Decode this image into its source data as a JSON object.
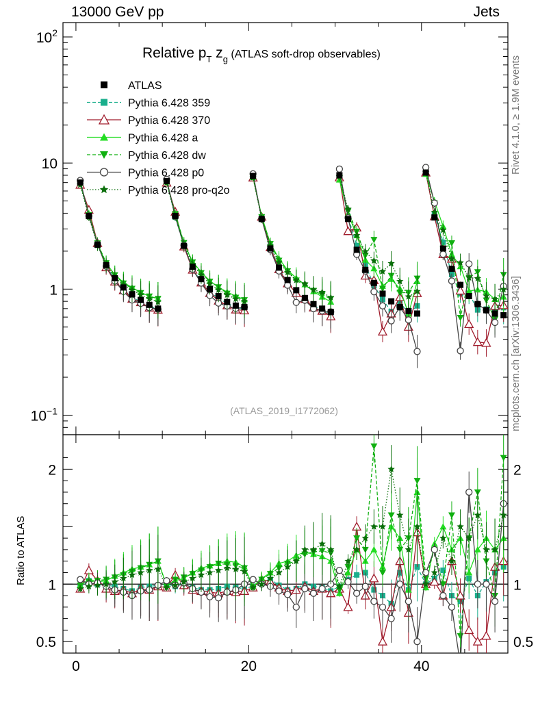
{
  "header": {
    "left": "13000 GeV pp",
    "right": "Jets"
  },
  "side": {
    "top": "Rivet 4.1.0, ≥ 1.9M events",
    "bottom": "mcplots.cern.ch [arXiv:1306.3436]"
  },
  "chart_data": {
    "type": "line",
    "title_parts": {
      "pre": "Relative p",
      "sub_T": "T",
      "mid": " z",
      "sub_g": "g",
      "post": " (ATLAS soft-drop observables)"
    },
    "analysis": "(ATLAS_2019_I1772062)",
    "xlabel": "",
    "ylabel_ratio": "Ratio to ATLAS",
    "xlim": [
      -1.5,
      50.0
    ],
    "ylim_main": [
      0.07,
      130
    ],
    "ylim_ratio": [
      0.4,
      2.3
    ],
    "yscale_main": "log",
    "x_ticks": [
      0,
      20,
      40
    ],
    "main_ticks": [
      {
        "v": 100,
        "m": "10",
        "e": "2"
      },
      {
        "v": 10,
        "m": "10",
        "e": ""
      },
      {
        "v": 1,
        "m": "1",
        "e": ""
      },
      {
        "v": 0.1,
        "m": "10",
        "e": "−1"
      }
    ],
    "ratio_ticks": [
      {
        "v": 2,
        "label": "2"
      },
      {
        "v": 1,
        "label": "1"
      },
      {
        "v": 0.5,
        "label": "0.5"
      }
    ],
    "data": {
      "name": "ATLAS",
      "x": [
        0.5,
        1.5,
        2.5,
        3.5,
        4.5,
        5.5,
        6.5,
        7.5,
        8.5,
        9.5,
        10.5,
        11.5,
        12.5,
        13.5,
        14.5,
        15.5,
        16.5,
        17.5,
        18.5,
        19.5,
        20.5,
        21.5,
        22.5,
        23.5,
        24.5,
        25.5,
        26.5,
        27.5,
        28.5,
        29.5,
        30.5,
        31.5,
        32.5,
        33.5,
        34.5,
        35.5,
        36.5,
        37.5,
        38.5,
        39.5,
        40.5,
        41.5,
        42.5,
        43.5,
        44.5,
        45.5,
        46.5,
        47.5,
        48.5,
        49.5
      ],
      "y": [
        7.0,
        3.8,
        2.25,
        1.55,
        1.22,
        1.03,
        0.91,
        0.82,
        0.75,
        0.7,
        7.2,
        3.8,
        2.2,
        1.5,
        1.2,
        1.0,
        0.88,
        0.79,
        0.74,
        0.72,
        7.9,
        3.6,
        2.1,
        1.48,
        1.18,
        0.98,
        0.85,
        0.76,
        0.7,
        0.66,
        8.0,
        3.6,
        2.05,
        1.42,
        1.12,
        0.92,
        0.8,
        0.72,
        0.67,
        0.64,
        8.4,
        3.7,
        2.1,
        1.45,
        1.08,
        0.88,
        0.76,
        0.68,
        0.64,
        0.62
      ]
    },
    "series": [
      {
        "name": "Pythia 6.428 359",
        "color": "#1aae8c",
        "style": "dashed",
        "marker": "square",
        "ratio": [
          0.97,
          1.03,
          1.0,
          0.99,
          0.98,
          0.96,
          0.94,
          0.97,
          0.98,
          0.99,
          1.0,
          0.98,
          1.0,
          0.97,
          0.95,
          0.95,
          0.96,
          0.98,
          0.97,
          0.96,
          0.98,
          1.02,
          1.04,
          0.99,
          0.95,
          0.96,
          1.0,
          0.98,
          0.97,
          0.94,
          0.98,
          1.04,
          1.08,
          1.1,
          0.95,
          0.9,
          0.83,
          1.1,
          0.95,
          1.15,
          1.0,
          1.05,
          1.12,
          0.9,
          0.85,
          1.05,
          0.9,
          1.02,
          1.1,
          1.15
        ]
      },
      {
        "name": "Pythia 6.428 370",
        "color": "#a01c2c",
        "style": "solid",
        "marker": "triangle-open",
        "ratio": [
          0.96,
          1.12,
          1.03,
          0.96,
          0.94,
          0.95,
          0.92,
          0.96,
          0.95,
          0.98,
          0.97,
          1.08,
          0.99,
          0.95,
          0.94,
          0.93,
          0.92,
          0.94,
          0.93,
          0.94,
          0.97,
          1.04,
          1.02,
          0.97,
          0.94,
          0.95,
          0.98,
          0.94,
          0.96,
          0.92,
          0.96,
          0.8,
          1.5,
          0.9,
          1.05,
          0.5,
          0.8,
          1.2,
          0.75,
          1.45,
          1.0,
          1.02,
          0.9,
          1.2,
          0.9,
          0.6,
          0.5,
          0.55,
          1.15,
          1.2
        ]
      },
      {
        "name": "Pythia 6.428 a",
        "color": "#22dd22",
        "style": "solid",
        "marker": "triangle",
        "ratio": [
          0.99,
          1.04,
          1.02,
          1.03,
          1.07,
          1.1,
          1.13,
          1.15,
          1.17,
          1.2,
          0.99,
          1.03,
          1.05,
          1.1,
          1.14,
          1.16,
          1.18,
          1.2,
          1.19,
          1.15,
          0.98,
          1.05,
          1.1,
          1.18,
          1.2,
          1.25,
          1.28,
          1.26,
          1.24,
          1.2,
          0.92,
          1.1,
          1.3,
          1.2,
          1.3,
          1.15,
          1.5,
          1.4,
          0.95,
          1.8,
          0.97,
          1.35,
          1.5,
          1.3,
          1.4,
          1.1,
          1.3,
          1.4,
          1.3,
          1.4
        ]
      },
      {
        "name": "Pythia 6.428 dw",
        "color": "#10b010",
        "style": "dashed",
        "marker": "triangle-down",
        "ratio": [
          0.99,
          1.02,
          1.03,
          1.04,
          1.06,
          1.08,
          1.11,
          1.14,
          1.17,
          1.2,
          0.98,
          1.04,
          1.06,
          1.09,
          1.12,
          1.15,
          1.18,
          1.17,
          1.16,
          1.14,
          0.97,
          1.04,
          1.09,
          1.14,
          1.18,
          1.2,
          1.26,
          1.28,
          1.29,
          1.27,
          0.95,
          1.15,
          1.4,
          1.3,
          2.2,
          1.1,
          1.6,
          1.3,
          1.4,
          1.9,
          1.05,
          1.3,
          1.0,
          1.6,
          0.55,
          1.4,
          1.8,
          1.2,
          0.9,
          2.1
        ]
      },
      {
        "name": "Pythia 6.428 p0",
        "color": "#444444",
        "style": "solid",
        "marker": "circle-open",
        "ratio": [
          1.04,
          1.0,
          1.01,
          0.98,
          0.95,
          0.93,
          0.9,
          0.94,
          0.95,
          0.99,
          1.03,
          0.99,
          1.01,
          0.96,
          0.93,
          0.89,
          0.88,
          0.93,
          0.95,
          1.0,
          1.04,
          1.0,
          0.98,
          0.94,
          0.91,
          0.8,
          0.96,
          0.92,
          0.96,
          1.0,
          1.12,
          1.02,
          0.92,
          0.98,
          0.85,
          0.8,
          0.7,
          1.0,
          0.85,
          0.5,
          1.1,
          1.3,
          0.9,
          0.8,
          0.3,
          1.8,
          1.0,
          1.0,
          0.85,
          1.7
        ]
      },
      {
        "name": "Pythia 6.428 pro-q2o",
        "color": "#0a6e0a",
        "style": "dotted",
        "marker": "star",
        "ratio": [
          0.96,
          0.98,
          0.99,
          1.0,
          1.02,
          1.05,
          1.08,
          1.1,
          1.12,
          1.13,
          0.97,
          0.99,
          1.02,
          1.05,
          1.08,
          1.1,
          1.12,
          1.14,
          1.13,
          1.11,
          0.97,
          1.0,
          1.05,
          1.1,
          1.15,
          1.2,
          1.3,
          1.3,
          1.35,
          1.3,
          0.98,
          1.2,
          1.3,
          1.4,
          1.5,
          1.5,
          2.0,
          1.6,
          1.3,
          1.5,
          1.0,
          1.1,
          1.4,
          1.2,
          1.5,
          1.4,
          1.6,
          1.3,
          1.3,
          1.6
        ]
      }
    ]
  }
}
